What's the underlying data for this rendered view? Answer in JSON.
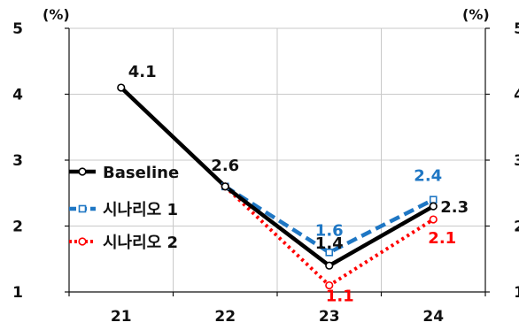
{
  "chart_data": {
    "type": "line",
    "title": "",
    "xlabel": "",
    "ylabel": "",
    "categories": [
      "21",
      "22",
      "23",
      "24"
    ],
    "ylim": [
      1,
      5
    ],
    "yticks": [
      "1",
      "2",
      "3",
      "4",
      "5"
    ],
    "left_unit": "(%)",
    "right_unit": "(%)",
    "grid": true,
    "legend_position": "left-middle",
    "series": [
      {
        "name": "Baseline",
        "color": "#000000",
        "style": "solid",
        "marker": "circle",
        "x": [
          "21",
          "22",
          "23",
          "24"
        ],
        "values": [
          4.1,
          2.6,
          1.4,
          2.3
        ],
        "labels": [
          "4.1",
          "2.6",
          "1.4",
          "2.3"
        ]
      },
      {
        "name": "시나리오 1",
        "color": "#1f77c4",
        "style": "dashed",
        "marker": "square",
        "x": [
          "22",
          "23",
          "24"
        ],
        "values": [
          2.6,
          1.6,
          2.4
        ],
        "labels": [
          "",
          "1.6",
          "2.4"
        ]
      },
      {
        "name": "시나리오 2",
        "color": "#ff0000",
        "style": "dotted",
        "marker": "circle",
        "x": [
          "22",
          "23",
          "24"
        ],
        "values": [
          2.6,
          1.1,
          2.1
        ],
        "labels": [
          "",
          "1.1",
          "2.1"
        ]
      }
    ]
  }
}
